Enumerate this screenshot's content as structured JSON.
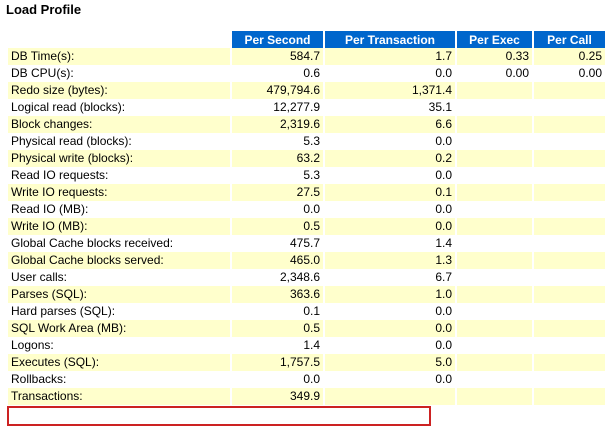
{
  "title": "Load Profile",
  "columns": [
    "Per Second",
    "Per Transaction",
    "Per Exec",
    "Per Call"
  ],
  "rows": [
    {
      "name": "DB Time(s):",
      "ps": "584.7",
      "pt": "1.7",
      "pe": "0.33",
      "pc": "0.25"
    },
    {
      "name": "DB CPU(s):",
      "ps": "0.6",
      "pt": "0.0",
      "pe": "0.00",
      "pc": "0.00"
    },
    {
      "name": "Redo size (bytes):",
      "ps": "479,794.6",
      "pt": "1,371.4",
      "pe": "",
      "pc": ""
    },
    {
      "name": "Logical read (blocks):",
      "ps": "12,277.9",
      "pt": "35.1",
      "pe": "",
      "pc": ""
    },
    {
      "name": "Block changes:",
      "ps": "2,319.6",
      "pt": "6.6",
      "pe": "",
      "pc": ""
    },
    {
      "name": "Physical read (blocks):",
      "ps": "5.3",
      "pt": "0.0",
      "pe": "",
      "pc": ""
    },
    {
      "name": "Physical write (blocks):",
      "ps": "63.2",
      "pt": "0.2",
      "pe": "",
      "pc": ""
    },
    {
      "name": "Read IO requests:",
      "ps": "5.3",
      "pt": "0.0",
      "pe": "",
      "pc": ""
    },
    {
      "name": "Write IO requests:",
      "ps": "27.5",
      "pt": "0.1",
      "pe": "",
      "pc": ""
    },
    {
      "name": "Read IO (MB):",
      "ps": "0.0",
      "pt": "0.0",
      "pe": "",
      "pc": ""
    },
    {
      "name": "Write IO (MB):",
      "ps": "0.5",
      "pt": "0.0",
      "pe": "",
      "pc": ""
    },
    {
      "name": "Global Cache blocks received:",
      "ps": "475.7",
      "pt": "1.4",
      "pe": "",
      "pc": ""
    },
    {
      "name": "Global Cache blocks served:",
      "ps": "465.0",
      "pt": "1.3",
      "pe": "",
      "pc": ""
    },
    {
      "name": "User calls:",
      "ps": "2,348.6",
      "pt": "6.7",
      "pe": "",
      "pc": ""
    },
    {
      "name": "Parses (SQL):",
      "ps": "363.6",
      "pt": "1.0",
      "pe": "",
      "pc": ""
    },
    {
      "name": "Hard parses (SQL):",
      "ps": "0.1",
      "pt": "0.0",
      "pe": "",
      "pc": ""
    },
    {
      "name": "SQL Work Area (MB):",
      "ps": "0.5",
      "pt": "0.0",
      "pe": "",
      "pc": ""
    },
    {
      "name": "Logons:",
      "ps": "1.4",
      "pt": "0.0",
      "pe": "",
      "pc": ""
    },
    {
      "name": "Executes (SQL):",
      "ps": "1,757.5",
      "pt": "5.0",
      "pe": "",
      "pc": ""
    },
    {
      "name": "Rollbacks:",
      "ps": "0.0",
      "pt": "0.0",
      "pe": "",
      "pc": ""
    },
    {
      "name": "Transactions:",
      "ps": "349.9",
      "pt": "",
      "pe": "",
      "pc": ""
    }
  ],
  "colors": {
    "header_bg": "#0066cc",
    "odd_row": "#ffffcc",
    "highlight_border": "#cc2222"
  }
}
